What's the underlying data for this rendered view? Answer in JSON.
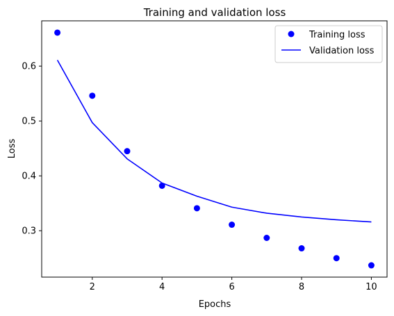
{
  "chart_data": {
    "type": "line",
    "title": "Training and validation loss",
    "xlabel": "Epochs",
    "ylabel": "Loss",
    "xlim": [
      0.55,
      10.45
    ],
    "ylim": [
      0.2155,
      0.6825
    ],
    "x_ticks": [
      2,
      4,
      6,
      8,
      10
    ],
    "y_ticks": [
      0.3,
      0.4,
      0.5,
      0.6
    ],
    "x_tick_labels": [
      "2",
      "4",
      "6",
      "8",
      "10"
    ],
    "y_tick_labels": [
      "0.3",
      "0.4",
      "0.5",
      "0.6"
    ],
    "grid": false,
    "legend_position": "top-right",
    "x": [
      1,
      2,
      3,
      4,
      5,
      6,
      7,
      8,
      9,
      10
    ],
    "series": [
      {
        "name": "Training loss",
        "style": "points",
        "color": "#0000ff",
        "values": [
          0.661,
          0.546,
          0.445,
          0.382,
          0.341,
          0.311,
          0.287,
          0.268,
          0.25,
          0.237
        ]
      },
      {
        "name": "Validation loss",
        "style": "line",
        "color": "#0000ff",
        "values": [
          0.611,
          0.497,
          0.431,
          0.387,
          0.363,
          0.343,
          0.332,
          0.325,
          0.32,
          0.316
        ]
      }
    ]
  }
}
